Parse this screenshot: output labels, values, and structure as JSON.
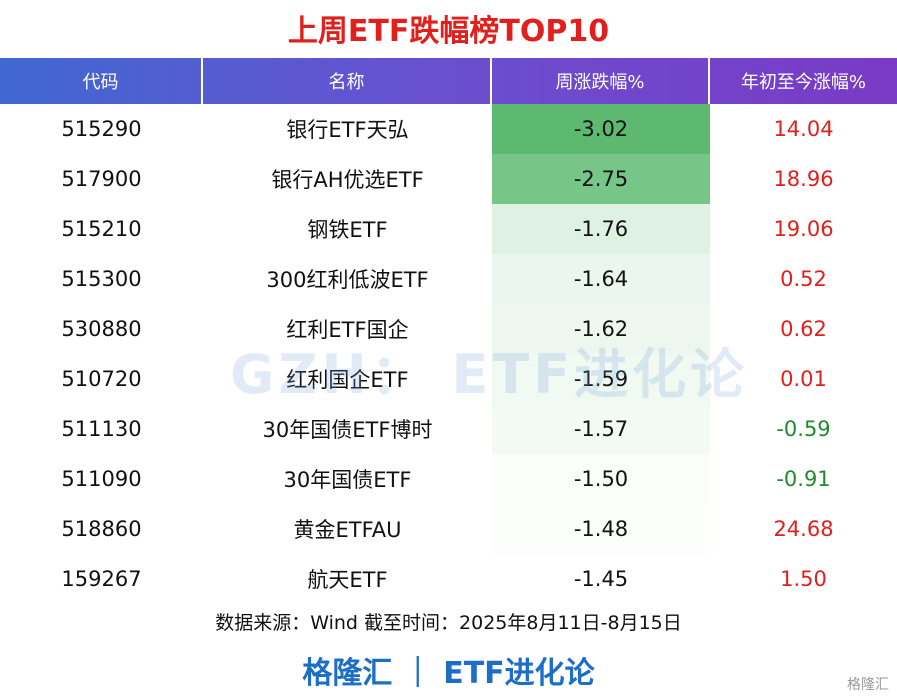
{
  "title": "上周ETF跌幅榜TOP10",
  "table": {
    "header": [
      "代码",
      "名称",
      "周涨跌幅%",
      "年初至今涨幅%"
    ],
    "rows": [
      [
        "515290",
        "银行ETF天弘",
        "-3.02",
        "14.04"
      ],
      [
        "517900",
        "银行AH优选ETF",
        "-2.75",
        "18.96"
      ],
      [
        "515210",
        "钢铁ETF",
        "-1.76",
        "19.06"
      ],
      [
        "515300",
        "300红利低波ETF",
        "-1.64",
        "0.52"
      ],
      [
        "530880",
        "红利ETF国企",
        "-1.62",
        "0.62"
      ],
      [
        "510720",
        "红利国企ETF",
        "-1.59",
        "0.01"
      ],
      [
        "511130",
        "30年国债ETF博时",
        "-1.57",
        "-0.59"
      ],
      [
        "511090",
        "30年国债ETF",
        "-1.50",
        "-0.91"
      ],
      [
        "518860",
        "黄金ETFAU",
        "-1.48",
        "24.68"
      ],
      [
        "159267",
        "航天ETF",
        "-1.45",
        "1.50"
      ]
    ]
  },
  "watermark": "GZH：  ETF进化论",
  "source": "数据来源：Wind 截至时间：2025年8月11日-8月15日",
  "footer": "格隆汇 ｜ ETF进化论",
  "logo": "格隆汇"
}
